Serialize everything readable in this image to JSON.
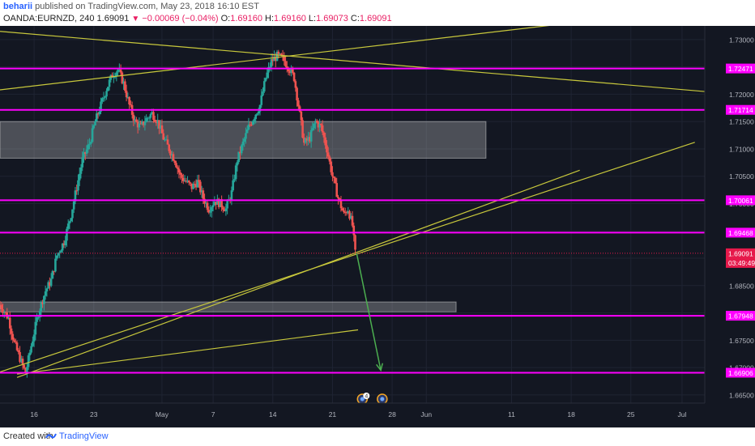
{
  "header": {
    "author": "beharii",
    "published": " published on TradingView.com, May 23, 2018 16:10 EST",
    "symbol": "OANDA:EURNZD, 240",
    "last": "1.69091",
    "change": "−0.00069 (−0.04%)",
    "o_label": "O:",
    "o_val": "1.69160",
    "h_label": "H:",
    "h_val": "1.69160",
    "l_label": "L:",
    "l_val": "1.69073",
    "c_label": "C:",
    "c_val": "1.69091"
  },
  "footer": {
    "created": "Created with",
    "brand": "TradingView"
  },
  "colors": {
    "background": "#131722",
    "grid": "#1f2433",
    "axis_bg": "#131722",
    "magenta": "#ff00ff",
    "yellow": "#c8c83c",
    "green": "#26a69a",
    "red": "#ef5350",
    "arrow": "#4caf50",
    "zone": "rgba(200,200,200,0.32)",
    "price_tag": "#e6194b",
    "tick_text": "#b2b5be"
  },
  "chart_data": {
    "type": "candlestick",
    "y_ticks": [
      "1.73000",
      "1.72500",
      "1.72000",
      "1.71500",
      "1.71000",
      "1.70500",
      "1.70000",
      "1.69500",
      "1.69000",
      "1.68500",
      "1.68000",
      "1.67500",
      "1.67000",
      "1.66500"
    ],
    "x_ticks": [
      {
        "label": "16",
        "date": "2018-04-16"
      },
      {
        "label": "23",
        "date": "2018-04-23"
      },
      {
        "label": "May",
        "date": "2018-05-01"
      },
      {
        "label": "7",
        "date": "2018-05-07"
      },
      {
        "label": "14",
        "date": "2018-05-14"
      },
      {
        "label": "21",
        "date": "2018-05-21"
      },
      {
        "label": "28",
        "date": "2018-05-28"
      },
      {
        "label": "Jun",
        "date": "2018-06-01"
      },
      {
        "label": "11",
        "date": "2018-06-11"
      },
      {
        "label": "18",
        "date": "2018-06-18"
      },
      {
        "label": "25",
        "date": "2018-06-25"
      },
      {
        "label": "Jul",
        "date": "2018-07-01"
      }
    ],
    "ylim": [
      1.6635,
      1.7325
    ],
    "xlim": [
      "2018-04-12T00:00",
      "2018-07-03T16:00"
    ],
    "horizontal_levels": [
      {
        "label": "1.72471",
        "value": 1.72471
      },
      {
        "label": "1.71714",
        "value": 1.71714
      },
      {
        "label": "1.70061",
        "value": 1.70061
      },
      {
        "label": "1.69468",
        "value": 1.69468
      },
      {
        "label": "1.67948",
        "value": 1.67948
      },
      {
        "label": "1.66906",
        "value": 1.66906
      }
    ],
    "current_price": {
      "label": "1.69091",
      "value": 1.69091,
      "countdown": "03:49:49"
    },
    "zones": [
      {
        "from": "2018-04-12T00:00",
        "to": "2018-06-08T00:00",
        "low": 1.7083,
        "high": 1.715
      },
      {
        "from": "2018-04-12T00:00",
        "to": "2018-06-04T12:00",
        "low": 1.6802,
        "high": 1.682
      }
    ],
    "trendlines": [
      {
        "x1": "2018-04-12T00:00",
        "y1": 1.7315,
        "x2": "2018-07-03T16:00",
        "y2": 1.7205
      },
      {
        "x1": "2018-04-12T00:00",
        "y1": 1.7208,
        "x2": "2018-06-27T00:00",
        "y2": 1.7347
      },
      {
        "x1": "2018-04-12T00:00",
        "y1": 1.6692,
        "x2": "2018-07-02T12:00",
        "y2": 1.7112
      },
      {
        "x1": "2018-04-14T00:00",
        "y1": 1.6682,
        "x2": "2018-06-19T00:00",
        "y2": 1.7061
      },
      {
        "x1": "2018-04-14T00:00",
        "y1": 1.6688,
        "x2": "2018-05-24T00:00",
        "y2": 1.6769
      }
    ],
    "projection_arrow": {
      "x1": "2018-05-23T20:00",
      "y1": 1.6909,
      "x2": "2018-05-26T16:00",
      "y2": 1.6695
    },
    "event_markers": [
      {
        "date": "2018-05-24T12:00",
        "label": "4"
      },
      {
        "date": "2018-05-26T20:00",
        "label": ""
      }
    ],
    "path": [
      [
        "2018-04-12T00:00",
        1.6815
      ],
      [
        "2018-04-13T00:00",
        1.679
      ],
      [
        "2018-04-13T16:00",
        1.6745
      ],
      [
        "2018-04-14T12:00",
        1.671
      ],
      [
        "2018-04-15T00:00",
        1.669
      ],
      [
        "2018-04-15T16:00",
        1.674
      ],
      [
        "2018-04-16T12:00",
        1.68
      ],
      [
        "2018-04-17T08:00",
        1.684
      ],
      [
        "2018-04-18T00:00",
        1.686
      ],
      [
        "2018-04-18T16:00",
        1.6905
      ],
      [
        "2018-04-19T12:00",
        1.693
      ],
      [
        "2018-04-20T08:00",
        1.698
      ],
      [
        "2018-04-21T00:00",
        1.703
      ],
      [
        "2018-04-21T16:00",
        1.708
      ],
      [
        "2018-04-22T12:00",
        1.711
      ],
      [
        "2018-04-23T04:00",
        1.715
      ],
      [
        "2018-04-23T20:00",
        1.718
      ],
      [
        "2018-04-24T12:00",
        1.721
      ],
      [
        "2018-04-25T04:00",
        1.7235
      ],
      [
        "2018-04-25T20:00",
        1.7245
      ],
      [
        "2018-04-26T12:00",
        1.722
      ],
      [
        "2018-04-27T04:00",
        1.718
      ],
      [
        "2018-04-27T20:00",
        1.715
      ],
      [
        "2018-04-28T12:00",
        1.714
      ],
      [
        "2018-04-29T04:00",
        1.7155
      ],
      [
        "2018-04-29T20:00",
        1.7165
      ],
      [
        "2018-04-30T12:00",
        1.715
      ],
      [
        "2018-05-01T04:00",
        1.712
      ],
      [
        "2018-05-01T20:00",
        1.71
      ],
      [
        "2018-05-02T12:00",
        1.708
      ],
      [
        "2018-05-03T04:00",
        1.705
      ],
      [
        "2018-05-03T20:00",
        1.704
      ],
      [
        "2018-05-04T12:00",
        1.703
      ],
      [
        "2018-05-05T04:00",
        1.704
      ],
      [
        "2018-05-05T20:00",
        1.701
      ],
      [
        "2018-05-06T12:00",
        1.699
      ],
      [
        "2018-05-07T04:00",
        1.7005
      ],
      [
        "2018-05-07T20:00",
        1.7
      ],
      [
        "2018-05-08T12:00",
        1.699
      ],
      [
        "2018-05-09T04:00",
        1.702
      ],
      [
        "2018-05-09T20:00",
        1.708
      ],
      [
        "2018-05-10T12:00",
        1.711
      ],
      [
        "2018-05-11T04:00",
        1.714
      ],
      [
        "2018-05-11T20:00",
        1.716
      ],
      [
        "2018-05-12T12:00",
        1.718
      ],
      [
        "2018-05-13T04:00",
        1.723
      ],
      [
        "2018-05-13T20:00",
        1.726
      ],
      [
        "2018-05-14T12:00",
        1.727
      ],
      [
        "2018-05-15T04:00",
        1.7265
      ],
      [
        "2018-05-15T20:00",
        1.725
      ],
      [
        "2018-05-16T12:00",
        1.723
      ],
      [
        "2018-05-17T00:00",
        1.718
      ],
      [
        "2018-05-17T16:00",
        1.711
      ],
      [
        "2018-05-18T08:00",
        1.712
      ],
      [
        "2018-05-19T00:00",
        1.715
      ],
      [
        "2018-05-19T16:00",
        1.714
      ],
      [
        "2018-05-20T08:00",
        1.71
      ],
      [
        "2018-05-21T00:00",
        1.705
      ],
      [
        "2018-05-21T16:00",
        1.701
      ],
      [
        "2018-05-22T08:00",
        1.698
      ],
      [
        "2018-05-22T20:00",
        1.699
      ],
      [
        "2018-05-23T08:00",
        1.696
      ],
      [
        "2018-05-23T16:00",
        1.6909
      ]
    ]
  }
}
